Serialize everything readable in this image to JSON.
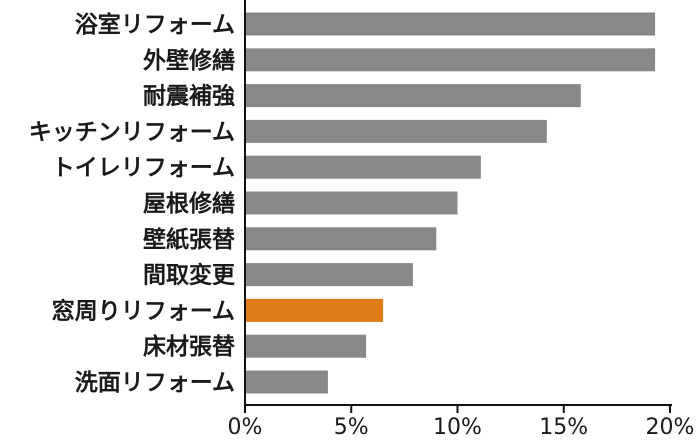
{
  "chart_data": {
    "type": "bar",
    "orientation": "horizontal",
    "categories": [
      "浴室リフォーム",
      "外壁修繕",
      "耐震補強",
      "キッチンリフォーム",
      "トイレリフォーム",
      "屋根修繕",
      "壁紙張替",
      "間取変更",
      "窓周りリフォーム",
      "床材張替",
      "洗面リフォーム"
    ],
    "values": [
      19.3,
      19.3,
      15.8,
      14.2,
      11.1,
      10.0,
      9.0,
      7.9,
      6.5,
      5.7,
      3.9
    ],
    "colors": [
      "#888888",
      "#888888",
      "#888888",
      "#888888",
      "#888888",
      "#888888",
      "#888888",
      "#888888",
      "#e07b1a",
      "#888888",
      "#888888"
    ],
    "highlight_category": "窓周りリフォーム",
    "xlim": [
      0,
      20
    ],
    "xticks": [
      0,
      5,
      10,
      15,
      20
    ],
    "xtick_labels": [
      "0%",
      "5%",
      "10%",
      "15%",
      "20%"
    ],
    "title": "",
    "xlabel": "",
    "ylabel": "",
    "grid": false,
    "legend": "none"
  }
}
